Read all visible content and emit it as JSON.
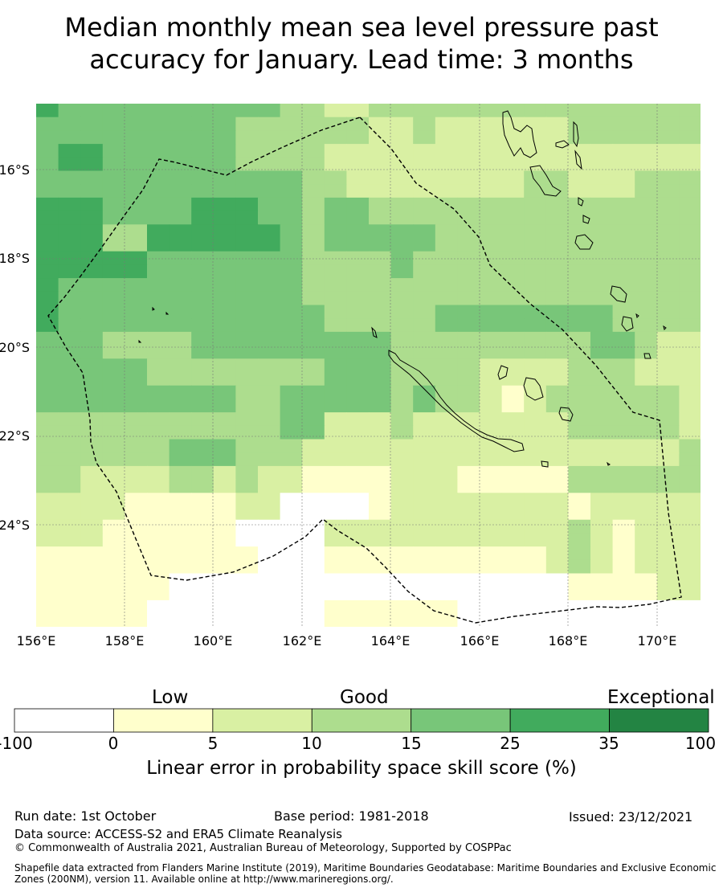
{
  "title": {
    "line1": "Median monthly mean sea level pressure past",
    "line2": "accuracy for January. Lead time: 3 months"
  },
  "map": {
    "lat_labels": [
      "16°S",
      "18°S",
      "20°S",
      "22°S",
      "24°S"
    ],
    "lon_labels": [
      "156°E",
      "158°E",
      "160°E",
      "162°E",
      "164°E",
      "166°E",
      "168°E",
      "170°E"
    ],
    "lon_range": [
      156,
      171
    ],
    "lat_range": [
      -26.5,
      -14.7
    ],
    "cell_size_deg": 0.833,
    "grid_rows": [
      "5444444444433223333333333333330",
      "4444444443333332232222223333332",
      "4444444443333332232222223333332",
      "4554444443333222222222222222223",
      "4554444443333222222222222222223",
      "4444444444443322222222332223333",
      "4444444444443322222222332223333",
      "5554444555443443333333333333333",
      "5554444555443443333333333333333",
      "5553355555543444443333333333333",
      "5553355555543444443333333333333",
      "5555544444443333433333333333333",
      "5555544444443333433333333333333",
      "5444444444443333333333333333333",
      "5444444444443333333333333333333",
      "5444444444444333334444444433333",
      "5444444444444333334444444433333",
      "4443333444444444333333333443222",
      "4443333444444444333333333443222",
      "4444433333333444333322223332222",
      "4444433333333444333322223332222",
      "4444444443344444343321233333322",
      "4444444443344444343321233333322",
      "3333333333344222322222223333322",
      "3333333333344222322222223333322",
      "3333334443332222222222222222232",
      "3333334443332222222222222222232",
      "3322223323221111222111113333333",
      "3322223323221111222111113333333",
      "2222111112200001222222221222222",
      "2222111112200001222222221222222",
      "2221111110000222222222223212221",
      "2221111110000222222222223212221",
      "1111111111000111111111123212222",
      "1111111111000111111111123212222",
      "1111110000000000000000001111221",
      "1111110000000000000000001111221",
      "1111100000000111111000000000000",
      "1111100000000111111000000000000"
    ]
  },
  "colorbar": {
    "boundaries": [
      "-100",
      "0",
      "5",
      "10",
      "15",
      "25",
      "35",
      "100"
    ],
    "colors": [
      "#ffffff",
      "#ffffcc",
      "#d9f0a3",
      "#addd8e",
      "#78c679",
      "#41ab5d",
      "#238443"
    ],
    "categories": [
      "Low",
      "Good",
      "Exceptional"
    ],
    "xlabel": "Linear error in probability space skill score (%)"
  },
  "footer": {
    "run_date": "Run date: 1st October",
    "base_period": "Base period: 1981-2018",
    "issued": "Issued: 23/12/2021",
    "data_source": "Data source: ACCESS-S2 and ERA5 Climate Reanalysis",
    "copyright": "© Commonwealth of Australia 2021, Australian Bureau of Meteorology, Supported by COSPPac",
    "shapefile": "Shapefile data extracted from Flanders Marine Institute (2019), Maritime Boundaries Geodatabase: Maritime Boundaries and Exclusive Economic Zones (200NM), version 11. Available online at http://www.marineregions.org/."
  }
}
